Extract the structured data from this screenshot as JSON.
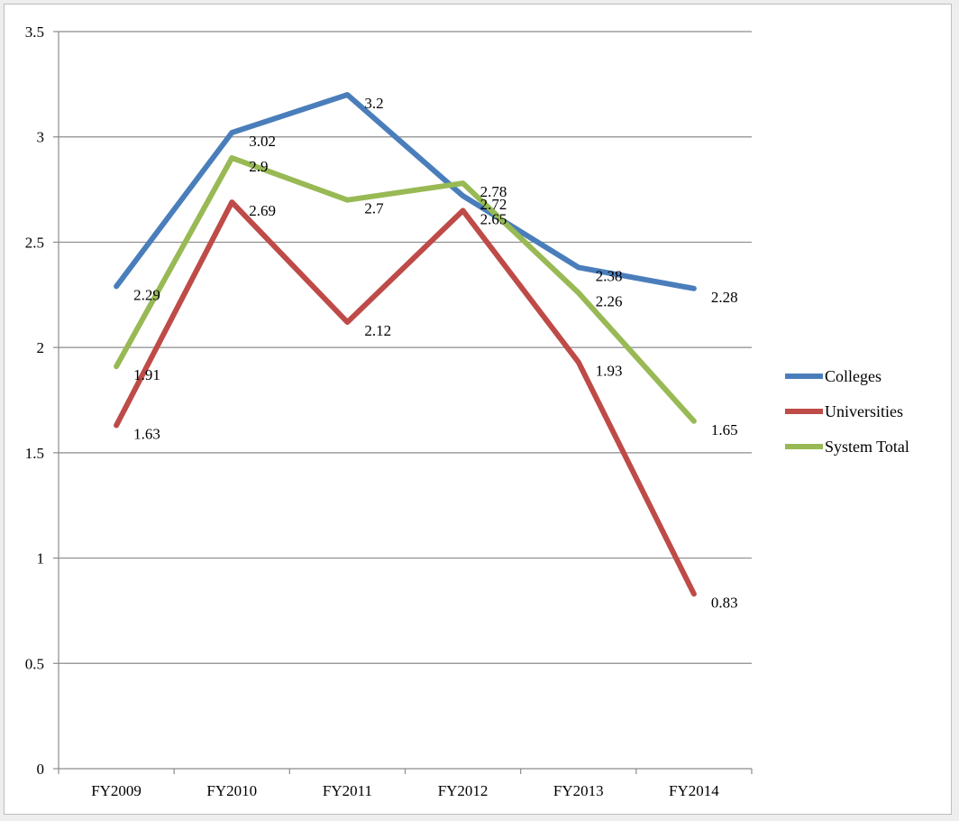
{
  "chart_data": {
    "type": "line",
    "title": "",
    "xlabel": "",
    "ylabel": "",
    "ylim": [
      0,
      3.5
    ],
    "yticks": [
      "0",
      "0.5",
      "1",
      "1.5",
      "2",
      "2.5",
      "3",
      "3.5"
    ],
    "grid": true,
    "legend_position": "right",
    "categories": [
      "FY2009",
      "FY2010",
      "FY2011",
      "FY2012",
      "FY2013",
      "FY2014"
    ],
    "series": [
      {
        "name": "Colleges",
        "color": "#4a7ebb",
        "values": [
          2.29,
          3.02,
          3.2,
          2.72,
          2.38,
          2.28
        ],
        "labels": [
          "2.29",
          "3.02",
          "3.2",
          "2.72",
          "2.38",
          "2.28"
        ]
      },
      {
        "name": "Universities",
        "color": "#be4b48",
        "values": [
          1.63,
          2.69,
          2.12,
          2.65,
          1.93,
          0.83
        ],
        "labels": [
          "1.63",
          "2.69",
          "2.12",
          "2.65",
          "1.93",
          "0.83"
        ]
      },
      {
        "name": "System Total",
        "color": "#98b954",
        "values": [
          1.91,
          2.9,
          2.7,
          2.78,
          2.26,
          1.65
        ],
        "labels": [
          "1.91",
          "2.9",
          "2.7",
          "2.78",
          "2.26",
          "1.65"
        ]
      }
    ]
  }
}
